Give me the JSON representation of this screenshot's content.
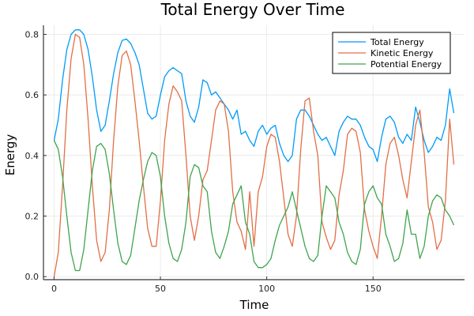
{
  "chart_data": {
    "type": "line",
    "title": "Total Energy Over Time",
    "xlabel": "Time",
    "ylabel": "Energy",
    "xlim": [
      -5,
      193
    ],
    "ylim": [
      -0.01,
      0.83
    ],
    "xticks": [
      0,
      50,
      100,
      150
    ],
    "xtick_labels": [
      "0",
      "50",
      "100",
      "150"
    ],
    "yticks": [
      0.0,
      0.2,
      0.4,
      0.6,
      0.8
    ],
    "ytick_labels": [
      "0.0",
      "0.2",
      "0.4",
      "0.6",
      "0.8"
    ],
    "grid": true,
    "legend_position": "top-right",
    "x": [
      0,
      2,
      4,
      6,
      8,
      10,
      12,
      14,
      16,
      18,
      20,
      22,
      24,
      26,
      28,
      30,
      32,
      34,
      36,
      38,
      40,
      42,
      44,
      46,
      48,
      50,
      52,
      54,
      56,
      58,
      60,
      62,
      64,
      66,
      68,
      70,
      72,
      74,
      76,
      78,
      80,
      82,
      84,
      86,
      88,
      90,
      92,
      94,
      96,
      98,
      100,
      102,
      104,
      106,
      108,
      110,
      112,
      114,
      116,
      118,
      120,
      122,
      124,
      126,
      128,
      130,
      132,
      134,
      136,
      138,
      140,
      142,
      144,
      146,
      148,
      150,
      152,
      154,
      156,
      158,
      160,
      162,
      164,
      166,
      168,
      170,
      172,
      174,
      176,
      178,
      180,
      182,
      184,
      186,
      188
    ],
    "series": [
      {
        "name": "Total Energy",
        "color": "#009AFA",
        "values": [
          0.45,
          0.52,
          0.65,
          0.75,
          0.8,
          0.815,
          0.815,
          0.8,
          0.75,
          0.66,
          0.55,
          0.48,
          0.5,
          0.58,
          0.67,
          0.74,
          0.78,
          0.785,
          0.77,
          0.74,
          0.7,
          0.62,
          0.54,
          0.52,
          0.53,
          0.6,
          0.66,
          0.68,
          0.69,
          0.68,
          0.67,
          0.58,
          0.53,
          0.51,
          0.56,
          0.65,
          0.64,
          0.6,
          0.61,
          0.59,
          0.57,
          0.55,
          0.52,
          0.55,
          0.47,
          0.48,
          0.45,
          0.43,
          0.48,
          0.5,
          0.47,
          0.49,
          0.5,
          0.44,
          0.4,
          0.38,
          0.4,
          0.52,
          0.55,
          0.55,
          0.53,
          0.5,
          0.47,
          0.45,
          0.46,
          0.43,
          0.4,
          0.48,
          0.51,
          0.53,
          0.52,
          0.52,
          0.5,
          0.46,
          0.43,
          0.42,
          0.38,
          0.46,
          0.52,
          0.53,
          0.51,
          0.46,
          0.44,
          0.47,
          0.45,
          0.56,
          0.51,
          0.45,
          0.41,
          0.43,
          0.46,
          0.45,
          0.5,
          0.62,
          0.54
        ]
      },
      {
        "name": "Kinetic Energy",
        "color": "#E26F46",
        "values": [
          0.0,
          0.08,
          0.3,
          0.55,
          0.72,
          0.8,
          0.79,
          0.7,
          0.52,
          0.3,
          0.12,
          0.05,
          0.08,
          0.22,
          0.45,
          0.63,
          0.73,
          0.745,
          0.7,
          0.58,
          0.45,
          0.3,
          0.16,
          0.1,
          0.1,
          0.25,
          0.45,
          0.57,
          0.63,
          0.61,
          0.58,
          0.4,
          0.2,
          0.12,
          0.2,
          0.32,
          0.35,
          0.45,
          0.55,
          0.58,
          0.57,
          0.48,
          0.28,
          0.18,
          0.15,
          0.09,
          0.28,
          0.1,
          0.28,
          0.33,
          0.43,
          0.47,
          0.46,
          0.38,
          0.26,
          0.14,
          0.1,
          0.2,
          0.42,
          0.58,
          0.59,
          0.48,
          0.4,
          0.18,
          0.13,
          0.09,
          0.12,
          0.27,
          0.35,
          0.47,
          0.49,
          0.48,
          0.41,
          0.22,
          0.15,
          0.1,
          0.06,
          0.2,
          0.37,
          0.44,
          0.46,
          0.4,
          0.32,
          0.26,
          0.38,
          0.5,
          0.55,
          0.41,
          0.23,
          0.18,
          0.09,
          0.12,
          0.25,
          0.52,
          0.37
        ]
      },
      {
        "name": "Potential Energy",
        "color": "#3EA44E",
        "values": [
          0.45,
          0.42,
          0.33,
          0.2,
          0.08,
          0.02,
          0.02,
          0.09,
          0.22,
          0.35,
          0.43,
          0.44,
          0.42,
          0.34,
          0.22,
          0.11,
          0.05,
          0.04,
          0.07,
          0.16,
          0.25,
          0.32,
          0.38,
          0.41,
          0.4,
          0.33,
          0.2,
          0.11,
          0.06,
          0.05,
          0.09,
          0.18,
          0.33,
          0.37,
          0.36,
          0.3,
          0.28,
          0.15,
          0.08,
          0.06,
          0.1,
          0.15,
          0.24,
          0.27,
          0.3,
          0.18,
          0.14,
          0.05,
          0.03,
          0.03,
          0.04,
          0.06,
          0.12,
          0.17,
          0.2,
          0.23,
          0.28,
          0.22,
          0.16,
          0.1,
          0.06,
          0.05,
          0.07,
          0.2,
          0.3,
          0.28,
          0.26,
          0.18,
          0.14,
          0.08,
          0.05,
          0.04,
          0.09,
          0.24,
          0.28,
          0.3,
          0.26,
          0.24,
          0.14,
          0.1,
          0.05,
          0.06,
          0.11,
          0.22,
          0.14,
          0.14,
          0.06,
          0.1,
          0.2,
          0.25,
          0.27,
          0.26,
          0.22,
          0.2,
          0.17
        ]
      }
    ]
  }
}
